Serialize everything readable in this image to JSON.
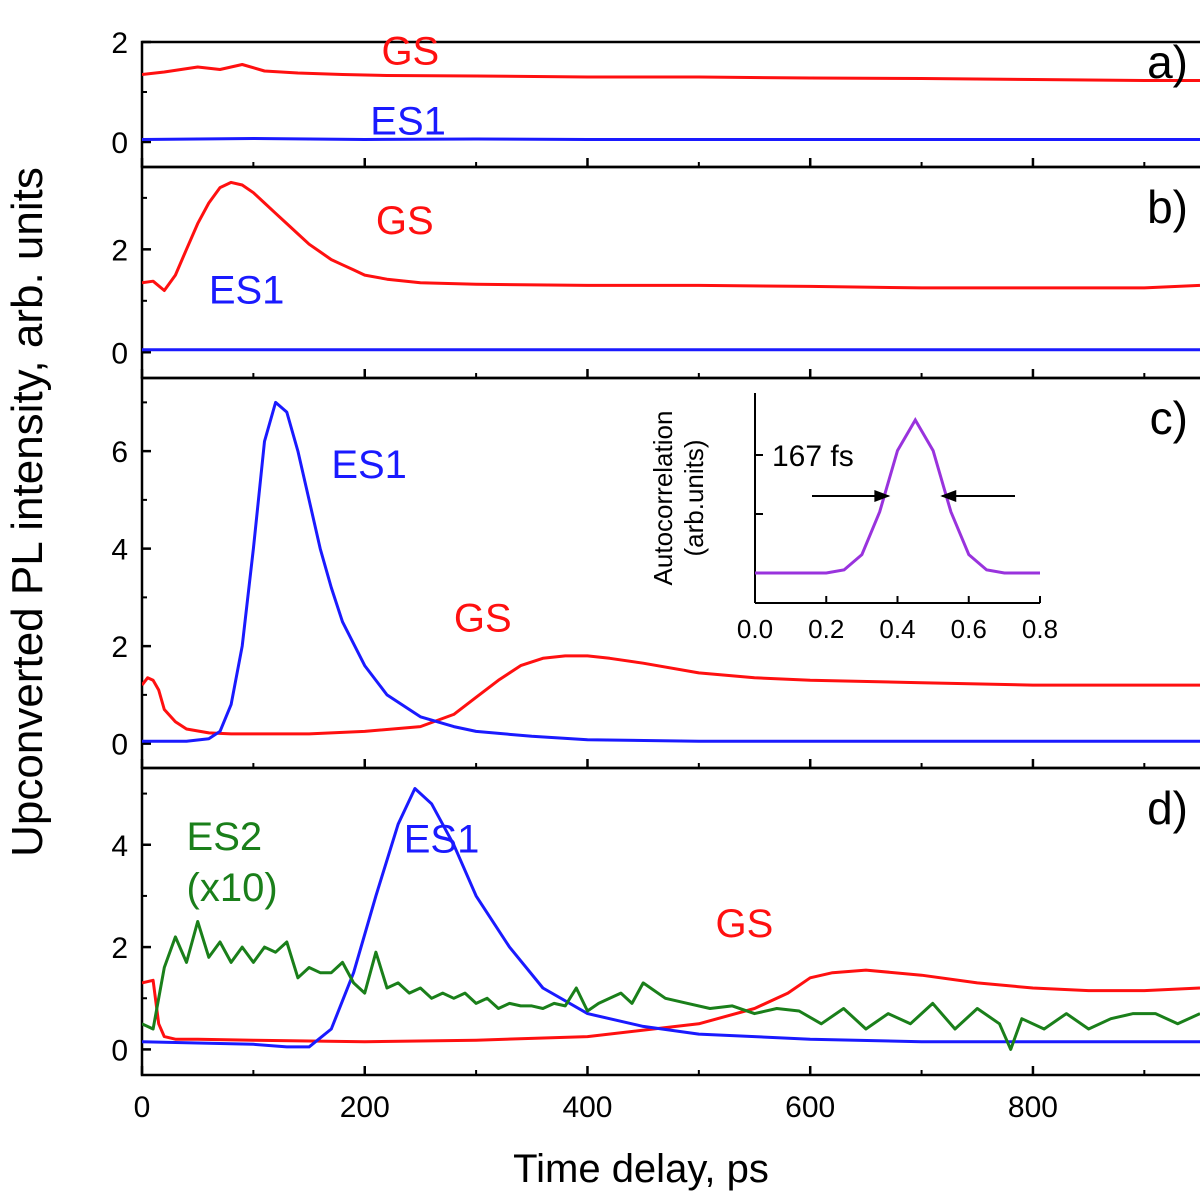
{
  "figure": {
    "ylabel": "Upconverted PL intensity, arb. units",
    "xlabel": "Time delay, ps"
  },
  "colors": {
    "GS": "#ff1010",
    "ES1": "#1a1aff",
    "ES2": "#1a7f1a",
    "inset": "#9933dd"
  },
  "chart_data": [
    {
      "type": "line",
      "panel_label": "a)",
      "xlim": [
        0,
        950
      ],
      "ylim": [
        -0.5,
        2
      ],
      "yticks": [
        0,
        2
      ],
      "series": [
        {
          "name": "GS",
          "color": "#ff1010",
          "x": [
            0,
            20,
            50,
            70,
            90,
            110,
            140,
            180,
            220,
            300,
            400,
            500,
            600,
            700,
            800,
            900,
            950
          ],
          "y": [
            1.35,
            1.4,
            1.5,
            1.45,
            1.55,
            1.42,
            1.38,
            1.35,
            1.33,
            1.32,
            1.3,
            1.3,
            1.28,
            1.27,
            1.25,
            1.23,
            1.23
          ]
        },
        {
          "name": "ES1",
          "color": "#1a1aff",
          "x": [
            0,
            100,
            200,
            300,
            400,
            500,
            600,
            700,
            800,
            900,
            950
          ],
          "y": [
            0.05,
            0.07,
            0.05,
            0.06,
            0.05,
            0.05,
            0.05,
            0.05,
            0.05,
            0.05,
            0.05
          ]
        }
      ],
      "annotations": [
        {
          "text": "GS",
          "x": 215,
          "y": 1.55,
          "color": "#ff1010"
        },
        {
          "text": "ES1",
          "x": 205,
          "y": 0.15,
          "color": "#1a1aff"
        }
      ]
    },
    {
      "type": "line",
      "panel_label": "b)",
      "xlim": [
        0,
        950
      ],
      "ylim": [
        -0.5,
        3.6
      ],
      "yticks": [
        0,
        2
      ],
      "series": [
        {
          "name": "GS",
          "color": "#ff1010",
          "x": [
            0,
            10,
            20,
            30,
            40,
            50,
            60,
            70,
            80,
            90,
            100,
            110,
            120,
            130,
            140,
            150,
            160,
            170,
            180,
            190,
            200,
            220,
            250,
            300,
            400,
            500,
            600,
            700,
            800,
            900,
            950
          ],
          "y": [
            1.35,
            1.38,
            1.2,
            1.5,
            2.0,
            2.5,
            2.9,
            3.2,
            3.3,
            3.25,
            3.1,
            2.9,
            2.7,
            2.5,
            2.3,
            2.1,
            1.95,
            1.8,
            1.7,
            1.6,
            1.5,
            1.42,
            1.35,
            1.32,
            1.3,
            1.3,
            1.28,
            1.25,
            1.25,
            1.25,
            1.3
          ]
        },
        {
          "name": "ES1",
          "color": "#1a1aff",
          "x": [
            0,
            100,
            200,
            300,
            400,
            500,
            600,
            700,
            800,
            900,
            950
          ],
          "y": [
            0.05,
            0.05,
            0.05,
            0.05,
            0.05,
            0.05,
            0.05,
            0.05,
            0.05,
            0.05,
            0.05
          ]
        }
      ],
      "annotations": [
        {
          "text": "GS",
          "x": 210,
          "y": 2.3,
          "color": "#ff1010"
        },
        {
          "text": "ES1",
          "x": 60,
          "y": 0.95,
          "color": "#1a1aff"
        }
      ]
    },
    {
      "type": "line",
      "panel_label": "c)",
      "xlim": [
        0,
        950
      ],
      "ylim": [
        -0.5,
        7.5
      ],
      "yticks": [
        0,
        2,
        4,
        6
      ],
      "series": [
        {
          "name": "GS",
          "color": "#ff1010",
          "x": [
            0,
            5,
            10,
            15,
            20,
            30,
            40,
            60,
            80,
            100,
            150,
            200,
            250,
            280,
            300,
            320,
            340,
            360,
            380,
            400,
            420,
            450,
            500,
            550,
            600,
            700,
            800,
            900,
            950
          ],
          "y": [
            1.2,
            1.35,
            1.3,
            1.1,
            0.7,
            0.45,
            0.3,
            0.22,
            0.2,
            0.2,
            0.2,
            0.25,
            0.35,
            0.6,
            0.95,
            1.3,
            1.6,
            1.75,
            1.8,
            1.8,
            1.75,
            1.65,
            1.45,
            1.35,
            1.3,
            1.25,
            1.2,
            1.2,
            1.2
          ]
        },
        {
          "name": "ES1",
          "color": "#1a1aff",
          "x": [
            0,
            40,
            60,
            70,
            80,
            90,
            100,
            110,
            120,
            130,
            140,
            150,
            160,
            170,
            180,
            200,
            220,
            250,
            280,
            300,
            350,
            400,
            500,
            600,
            700,
            800,
            900,
            950
          ],
          "y": [
            0.05,
            0.05,
            0.1,
            0.25,
            0.8,
            2.0,
            4.0,
            6.2,
            7.0,
            6.8,
            6.0,
            5.0,
            4.0,
            3.2,
            2.5,
            1.6,
            1.0,
            0.55,
            0.35,
            0.25,
            0.15,
            0.08,
            0.05,
            0.05,
            0.05,
            0.05,
            0.05,
            0.05
          ]
        }
      ],
      "annotations": [
        {
          "text": "ES1",
          "x": 170,
          "y": 5.45,
          "color": "#1a1aff"
        },
        {
          "text": "GS",
          "x": 280,
          "y": 2.3,
          "color": "#ff1010"
        }
      ],
      "inset": {
        "type": "line",
        "ylabel": "Autocorrelation (arb.units)",
        "xlim": [
          0,
          0.8
        ],
        "xticks": [
          "0.0",
          "0.2",
          "0.4",
          "0.6",
          "0.8"
        ],
        "fwhm_label": "167 fs",
        "fwhm": [
          0.38,
          0.52
        ],
        "series": [
          {
            "color": "#9933dd",
            "x": [
              0.0,
              0.2,
              0.25,
              0.3,
              0.35,
              0.4,
              0.45,
              0.5,
              0.55,
              0.6,
              0.65,
              0.7,
              0.8
            ],
            "y": [
              0.0,
              0.0,
              0.02,
              0.12,
              0.4,
              0.8,
              1.0,
              0.8,
              0.4,
              0.12,
              0.02,
              0.0,
              0.0
            ]
          }
        ]
      }
    },
    {
      "type": "line",
      "panel_label": "d)",
      "xlim": [
        0,
        950
      ],
      "ylim": [
        -0.5,
        5.5
      ],
      "yticks": [
        0,
        2,
        4
      ],
      "xticks": [
        0,
        200,
        400,
        600,
        800
      ],
      "series": [
        {
          "name": "GS",
          "color": "#ff1010",
          "x": [
            0,
            10,
            15,
            20,
            30,
            50,
            100,
            200,
            300,
            400,
            500,
            550,
            580,
            600,
            620,
            650,
            700,
            750,
            800,
            850,
            900,
            950
          ],
          "y": [
            1.3,
            1.35,
            0.5,
            0.25,
            0.2,
            0.2,
            0.18,
            0.15,
            0.18,
            0.25,
            0.5,
            0.8,
            1.1,
            1.4,
            1.5,
            1.55,
            1.45,
            1.3,
            1.2,
            1.15,
            1.15,
            1.2
          ]
        },
        {
          "name": "ES1",
          "color": "#1a1aff",
          "x": [
            0,
            100,
            130,
            150,
            170,
            190,
            210,
            230,
            245,
            260,
            280,
            300,
            330,
            360,
            400,
            450,
            500,
            600,
            700,
            800,
            900,
            950
          ],
          "y": [
            0.15,
            0.1,
            0.05,
            0.05,
            0.4,
            1.5,
            3.0,
            4.4,
            5.1,
            4.8,
            4.0,
            3.0,
            2.0,
            1.2,
            0.7,
            0.45,
            0.3,
            0.2,
            0.15,
            0.15,
            0.15,
            0.15
          ]
        },
        {
          "name": "ES2",
          "color": "#1a7f1a",
          "x": [
            0,
            10,
            20,
            30,
            40,
            50,
            60,
            70,
            80,
            90,
            100,
            110,
            120,
            130,
            140,
            150,
            160,
            170,
            180,
            190,
            200,
            210,
            220,
            230,
            240,
            250,
            260,
            270,
            280,
            290,
            300,
            310,
            320,
            330,
            340,
            350,
            360,
            370,
            380,
            390,
            400,
            410,
            420,
            430,
            440,
            450,
            470,
            490,
            510,
            530,
            550,
            570,
            590,
            610,
            630,
            650,
            670,
            690,
            710,
            730,
            750,
            770,
            780,
            790,
            810,
            830,
            850,
            870,
            890,
            910,
            930,
            950
          ],
          "y": [
            0.5,
            0.4,
            1.6,
            2.2,
            1.7,
            2.5,
            1.8,
            2.1,
            1.7,
            2.0,
            1.7,
            2.0,
            1.9,
            2.1,
            1.4,
            1.6,
            1.5,
            1.5,
            1.7,
            1.3,
            1.1,
            1.9,
            1.2,
            1.3,
            1.1,
            1.2,
            1.0,
            1.1,
            1.0,
            1.1,
            0.9,
            1.0,
            0.8,
            0.9,
            0.85,
            0.85,
            0.8,
            0.9,
            0.85,
            1.2,
            0.75,
            0.9,
            1.0,
            1.1,
            0.9,
            1.3,
            1.0,
            0.9,
            0.8,
            0.85,
            0.7,
            0.8,
            0.75,
            0.5,
            0.8,
            0.4,
            0.7,
            0.5,
            0.9,
            0.4,
            0.8,
            0.5,
            0.0,
            0.6,
            0.4,
            0.7,
            0.4,
            0.6,
            0.7,
            0.7,
            0.5,
            0.7
          ]
        }
      ],
      "annotations": [
        {
          "text": "ES2",
          "x": 40,
          "y": 3.9,
          "color": "#1a7f1a"
        },
        {
          "text": "(x10)",
          "x": 40,
          "y": 2.9,
          "color": "#1a7f1a"
        },
        {
          "text": "ES1",
          "x": 235,
          "y": 3.85,
          "color": "#1a1aff"
        },
        {
          "text": "GS",
          "x": 515,
          "y": 2.2,
          "color": "#ff1010"
        }
      ]
    }
  ]
}
